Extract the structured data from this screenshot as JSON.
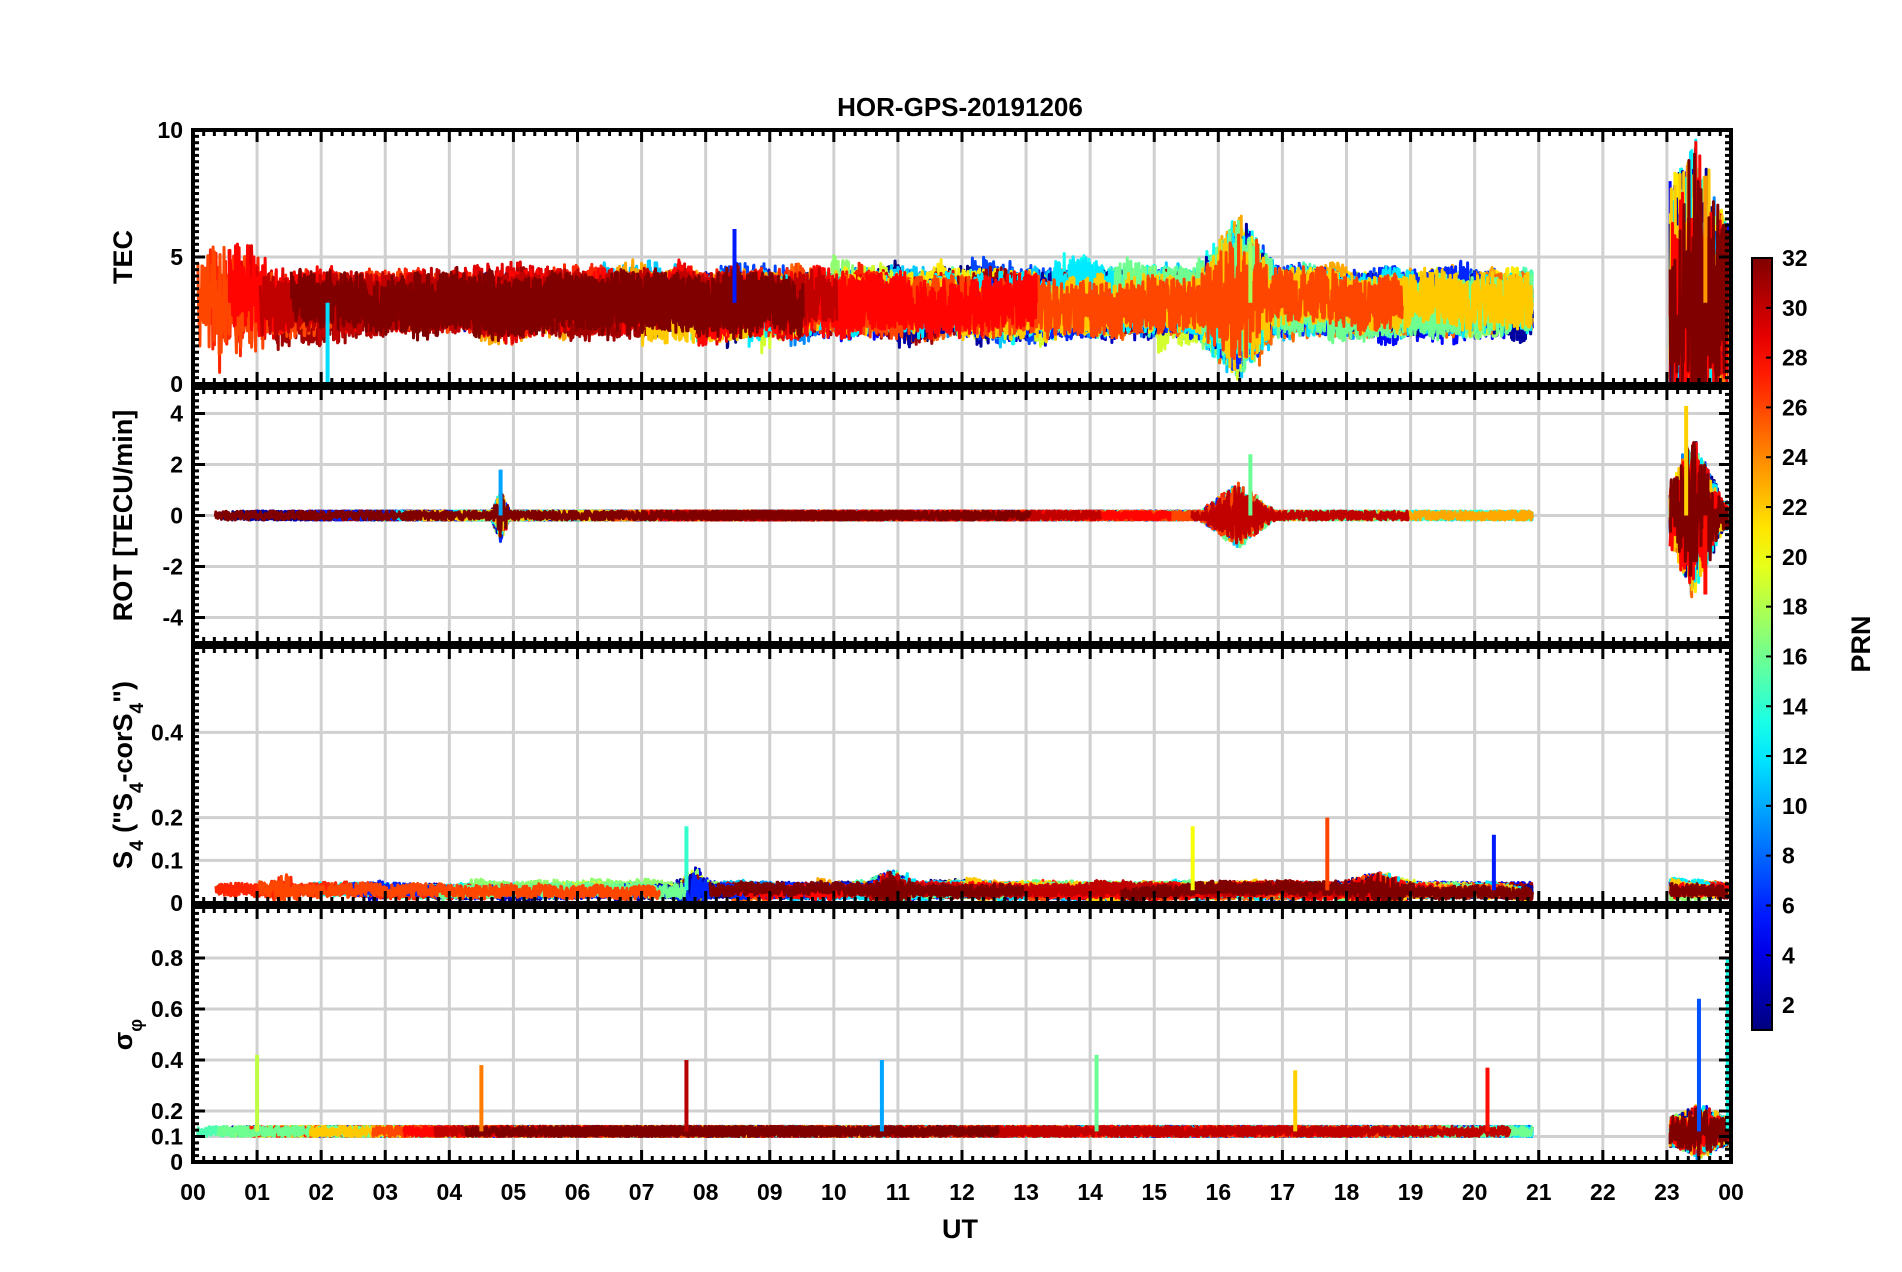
{
  "chart_data": {
    "type": "line",
    "title": "HOR-GPS-20191206",
    "xlabel": "UT",
    "xlim": [
      0,
      24
    ],
    "xticks": [
      0,
      1,
      2,
      3,
      4,
      5,
      6,
      7,
      8,
      9,
      10,
      11,
      12,
      13,
      14,
      15,
      16,
      17,
      18,
      19,
      20,
      21,
      22,
      23,
      24
    ],
    "xtick_labels": [
      "00",
      "01",
      "02",
      "03",
      "04",
      "05",
      "06",
      "07",
      "08",
      "09",
      "10",
      "11",
      "12",
      "13",
      "14",
      "15",
      "16",
      "17",
      "18",
      "19",
      "20",
      "21",
      "22",
      "23",
      "00"
    ],
    "grid": true,
    "panels": [
      {
        "id": "tec",
        "ylabel": "TEC",
        "ylim": [
          0,
          10
        ],
        "yticks": [
          0,
          5,
          10
        ],
        "ytick_labels": [
          "0",
          "5",
          "10"
        ],
        "data_window": [
          0,
          20.9
        ],
        "late_window": [
          23.05,
          23.95
        ],
        "baseline": 3.2,
        "spread": 0.9,
        "amplitude": 1.1,
        "events": [
          [
            16.3,
            2.2,
            0.7
          ],
          [
            23.4,
            4.5,
            0.6
          ],
          [
            0.4,
            -1.5,
            1.2
          ]
        ],
        "peaks": [
          {
            "x": 8.45,
            "y": 6.1
          },
          {
            "x": 2.1,
            "y": 0.0
          },
          {
            "x": 16.5,
            "y": 5.6
          },
          {
            "x": 23.6,
            "y": 8.2
          }
        ]
      },
      {
        "id": "rot",
        "ylabel": "ROT [TECU/min]",
        "ylim": [
          -5,
          5
        ],
        "yticks": [
          -4,
          -2,
          0,
          2,
          4
        ],
        "ytick_labels": [
          "-4",
          "-2",
          "0",
          "2",
          "4"
        ],
        "data_window": [
          0,
          20.9
        ],
        "late_window": [
          23.05,
          23.95
        ],
        "baseline": 0,
        "spread": 0.05,
        "amplitude": 0.18,
        "events": [
          [
            16.3,
            1.2,
            0.6
          ],
          [
            4.8,
            0.9,
            0.15
          ],
          [
            23.4,
            2.8,
            0.5
          ]
        ],
        "peaks": [
          {
            "x": 4.8,
            "y": 1.8
          },
          {
            "x": 16.5,
            "y": 2.4
          },
          {
            "x": 23.3,
            "y": 4.3
          },
          {
            "x": 23.6,
            "y": -3.1
          }
        ]
      },
      {
        "id": "s4",
        "ylabel_html": "S<tspan baseline-shift=\"sub\" font-size=\"19\">4</tspan> (\"S<tspan baseline-shift=\"sub\" font-size=\"19\">4</tspan>-corS<tspan baseline-shift=\"sub\" font-size=\"19\">4</tspan>\")",
        "ylim": [
          0,
          0.6
        ],
        "yticks": [
          0,
          0.1,
          0.2,
          0.4
        ],
        "ytick_labels": [
          "0",
          "0.1",
          "0.2",
          "0.4"
        ],
        "data_window": [
          0,
          20.9
        ],
        "late_window": [
          23.05,
          23.95
        ],
        "baseline": 0.03,
        "spread": 0.015,
        "amplitude": 0.03,
        "events": [
          [
            1.4,
            0.05,
            0.3
          ],
          [
            7.8,
            0.07,
            0.3
          ],
          [
            10.9,
            0.06,
            0.4
          ],
          [
            18.5,
            0.05,
            0.6
          ]
        ],
        "peaks": [
          {
            "x": 7.7,
            "y": 0.18
          },
          {
            "x": 15.6,
            "y": 0.18
          },
          {
            "x": 17.7,
            "y": 0.2
          },
          {
            "x": 20.3,
            "y": 0.16
          }
        ]
      },
      {
        "id": "sigma",
        "ylabel": "σφ",
        "ylim": [
          0,
          1
        ],
        "yticks": [
          0,
          0.1,
          0.2,
          0.4,
          0.6,
          0.8
        ],
        "ytick_labels": [
          "0",
          "0.1",
          "0.2",
          "0.4",
          "0.6",
          "0.8"
        ],
        "data_window": [
          0,
          20.9
        ],
        "late_window": [
          23.05,
          23.95
        ],
        "baseline": 0.12,
        "spread": 0.012,
        "amplitude": 0.02,
        "events": [
          [
            23.5,
            0.1,
            0.4
          ]
        ],
        "peaks": [
          {
            "x": 1.0,
            "y": 0.42
          },
          {
            "x": 4.5,
            "y": 0.38
          },
          {
            "x": 7.7,
            "y": 0.4
          },
          {
            "x": 10.75,
            "y": 0.4
          },
          {
            "x": 14.1,
            "y": 0.42
          },
          {
            "x": 17.2,
            "y": 0.36
          },
          {
            "x": 20.2,
            "y": 0.37
          },
          {
            "x": 23.5,
            "y": 0.64
          },
          {
            "x": 23.95,
            "y": 0.8
          }
        ]
      }
    ],
    "colorbar": {
      "label": "PRN",
      "colormap": "jet",
      "range": [
        1,
        32
      ],
      "ticks": [
        2,
        4,
        6,
        8,
        10,
        12,
        14,
        16,
        18,
        20,
        22,
        24,
        26,
        28,
        30,
        32
      ],
      "tick_labels": [
        "2",
        "4",
        "6",
        "8",
        "10",
        "12",
        "14",
        "16",
        "18",
        "20",
        "22",
        "24",
        "26",
        "28",
        "30",
        "32"
      ]
    },
    "series_prn": [
      1,
      3,
      5,
      7,
      9,
      11,
      13,
      15,
      17,
      19,
      21,
      23,
      25,
      27,
      29,
      31,
      2,
      6,
      12,
      16,
      22,
      26,
      28,
      30,
      32
    ]
  }
}
